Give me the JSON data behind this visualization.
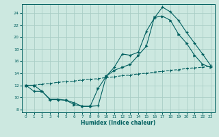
{
  "xlabel": "Humidex (Indice chaleur)",
  "ylabel": "",
  "bg_color": "#cce8e0",
  "grid_color": "#aacec6",
  "line_color": "#005f5f",
  "xlim": [
    -0.5,
    23.5
  ],
  "ylim": [
    7.5,
    25.5
  ],
  "yticks": [
    8,
    10,
    12,
    14,
    16,
    18,
    20,
    22,
    24
  ],
  "xticks": [
    0,
    1,
    2,
    3,
    4,
    5,
    6,
    7,
    8,
    9,
    10,
    11,
    12,
    13,
    14,
    15,
    16,
    17,
    18,
    19,
    20,
    21,
    22,
    23
  ],
  "line1_x": [
    0,
    1,
    2,
    3,
    4,
    5,
    6,
    7,
    8,
    9,
    10,
    11,
    12,
    13,
    14,
    15,
    16,
    17,
    18,
    19,
    20,
    21,
    22,
    23
  ],
  "line1_y": [
    12.0,
    12.0,
    12.2,
    12.3,
    12.5,
    12.6,
    12.7,
    12.9,
    13.0,
    13.1,
    13.3,
    13.4,
    13.6,
    13.7,
    13.9,
    14.0,
    14.2,
    14.3,
    14.5,
    14.6,
    14.8,
    14.9,
    15.0,
    15.2
  ],
  "line2_x": [
    0,
    1,
    2,
    3,
    4,
    5,
    6,
    7,
    8,
    9,
    10,
    11,
    12,
    13,
    14,
    15,
    16,
    17,
    18,
    19,
    20,
    21,
    22,
    23
  ],
  "line2_y": [
    12.0,
    12.0,
    11.0,
    9.7,
    9.7,
    9.5,
    8.8,
    8.5,
    8.5,
    11.5,
    13.5,
    14.5,
    15.0,
    15.5,
    17.0,
    18.5,
    23.3,
    23.5,
    22.8,
    20.5,
    19.0,
    17.0,
    15.5,
    15.0
  ],
  "line3_x": [
    0,
    1,
    2,
    3,
    4,
    5,
    6,
    7,
    8,
    9,
    10,
    11,
    12,
    13,
    14,
    15,
    16,
    17,
    18,
    19,
    20,
    21,
    22,
    23
  ],
  "line3_y": [
    12.0,
    11.0,
    11.0,
    9.6,
    9.6,
    9.5,
    9.1,
    8.5,
    8.5,
    8.6,
    13.5,
    15.0,
    17.2,
    17.0,
    17.5,
    21.0,
    23.2,
    25.0,
    24.2,
    22.8,
    20.8,
    19.0,
    17.2,
    15.3
  ]
}
